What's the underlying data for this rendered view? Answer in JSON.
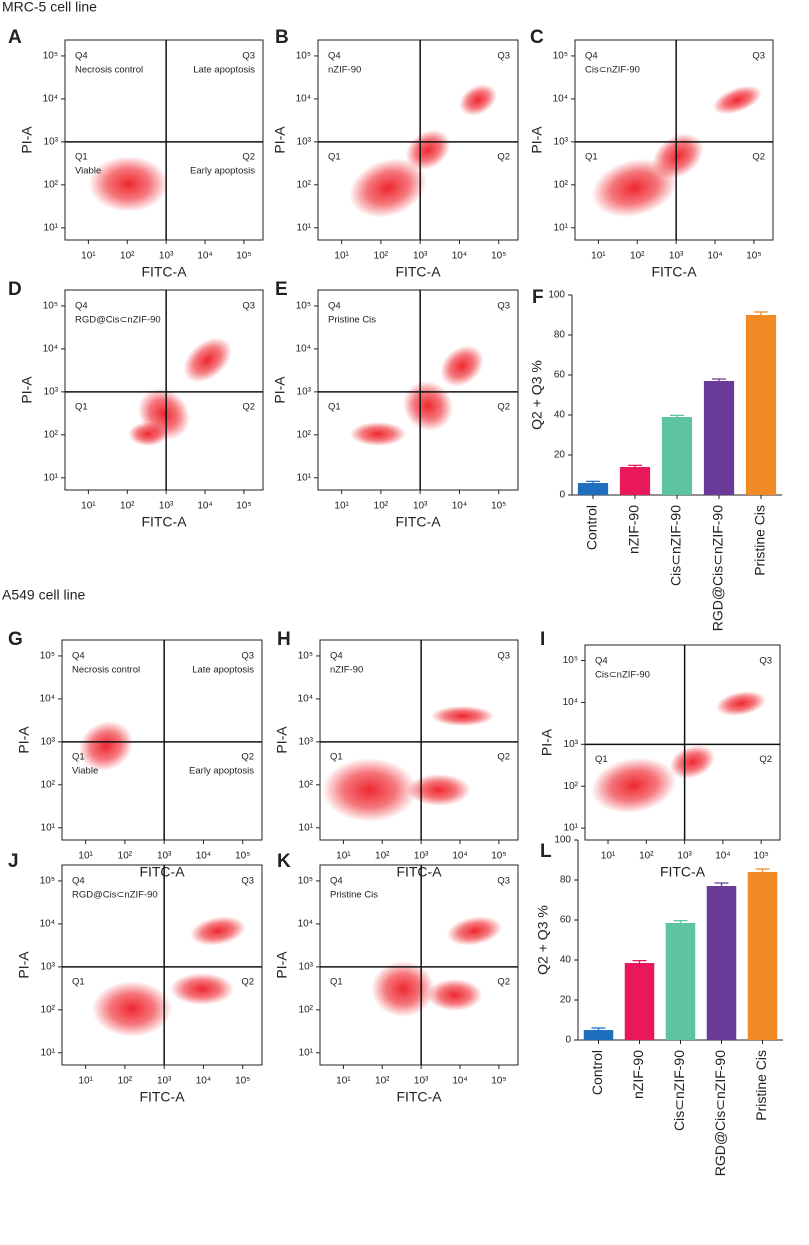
{
  "sections": [
    "MRC-5 cell line",
    "A549 cell line"
  ],
  "flow_axes": {
    "xlim": [
      2.5,
      310000
    ],
    "ylim": [
      5.2,
      235000
    ],
    "xticks": [
      {
        "value": 10,
        "label": "10¹"
      },
      {
        "value": 100,
        "label": "10²"
      },
      {
        "value": 1000,
        "label": "10³"
      },
      {
        "value": 10000,
        "label": "10⁴"
      },
      {
        "value": 100000,
        "label": "10⁵"
      }
    ],
    "yticks": [
      {
        "value": 10,
        "label": "10¹"
      },
      {
        "value": 100,
        "label": "10²"
      },
      {
        "value": 1000,
        "label": "10³"
      },
      {
        "value": 10000,
        "label": "10⁴"
      },
      {
        "value": 100000,
        "label": "10⁵"
      }
    ],
    "gate": {
      "x": 1000,
      "y": 1000
    },
    "log": true,
    "color": "#ee1c25"
  },
  "chart_data": [
    {
      "type": "scatter",
      "panel": "A",
      "xlabel": "FITC-A",
      "ylabel": "PI-A",
      "quadrants": [
        "Q4",
        "Q3",
        "Q1",
        "Q2"
      ],
      "quadrant_notes": [
        "Necrosis control",
        "Late apoptosis",
        "Viable",
        "Early apoptosis"
      ]
    },
    {
      "type": "scatter",
      "panel": "B",
      "xlabel": "FITC-A",
      "ylabel": "PI-A",
      "quadrants": [
        "Q4",
        "Q3",
        "Q1",
        "Q2"
      ],
      "annotation": "nZIF-90"
    },
    {
      "type": "scatter",
      "panel": "C",
      "xlabel": "FITC-A",
      "ylabel": "PI-A",
      "quadrants": [
        "Q4",
        "Q3",
        "Q1",
        "Q2"
      ],
      "annotation": "Cis⊂nZIF-90"
    },
    {
      "type": "scatter",
      "panel": "D",
      "xlabel": "FITC-A",
      "ylabel": "PI-A",
      "quadrants": [
        "Q4",
        "Q3",
        "Q1",
        "Q2"
      ],
      "annotation": "RGD@Cis⊂nZIF-90"
    },
    {
      "type": "scatter",
      "panel": "E",
      "xlabel": "FITC-A",
      "ylabel": "PI-A",
      "quadrants": [
        "Q4",
        "Q3",
        "Q1",
        "Q2"
      ],
      "annotation": "Pristine Cis"
    },
    {
      "type": "bar",
      "panel": "F",
      "ylabel": "Q2 + Q3 %",
      "categories": [
        "Control",
        "nZIF-90",
        "Cis⊂nZIF-90",
        "RGD@Cis⊂nZIF-90",
        "Pristine Cis"
      ],
      "values": [
        6,
        14,
        39,
        57,
        90
      ],
      "errors": [
        0.8,
        0.8,
        0.8,
        1,
        1.5
      ],
      "colors": [
        "#1f6fbf",
        "#e8185a",
        "#5ec4a0",
        "#6a3a98",
        "#f08a24"
      ],
      "ylim": [
        0,
        100
      ],
      "yticks": [
        0,
        20,
        40,
        60,
        80,
        100
      ]
    },
    {
      "type": "scatter",
      "panel": "G",
      "xlabel": "FITC-A",
      "ylabel": "PI-A",
      "quadrants": [
        "Q4",
        "Q3",
        "Q1",
        "Q2"
      ],
      "quadrant_notes": [
        "Necrosis control",
        "Late apoptosis",
        "Viable",
        "Early apoptosis"
      ]
    },
    {
      "type": "scatter",
      "panel": "H",
      "xlabel": "FITC-A",
      "ylabel": "PI-A",
      "quadrants": [
        "Q4",
        "Q3",
        "Q1",
        "Q2"
      ],
      "annotation": "nZIF-90"
    },
    {
      "type": "scatter",
      "panel": "I",
      "xlabel": "FITC-A",
      "ylabel": "PI-A",
      "quadrants": [
        "Q4",
        "Q3",
        "Q1",
        "Q2"
      ],
      "annotation": "Cis⊂nZIF-90"
    },
    {
      "type": "scatter",
      "panel": "J",
      "xlabel": "FITC-A",
      "ylabel": "PI-A",
      "quadrants": [
        "Q4",
        "Q3",
        "Q1",
        "Q2"
      ],
      "annotation": "RGD@Cis⊂nZIF-90"
    },
    {
      "type": "scatter",
      "panel": "K",
      "xlabel": "FITC-A",
      "ylabel": "PI-A",
      "quadrants": [
        "Q4",
        "Q3",
        "Q1",
        "Q2"
      ],
      "annotation": "Pristine Cis"
    },
    {
      "type": "bar",
      "panel": "L",
      "ylabel": "Q2 + Q3 %",
      "categories": [
        "Control",
        "nZIF-90",
        "Cis⊂nZIF-90",
        "RGD@Cis⊂nZIF-90",
        "Pristine Cis"
      ],
      "values": [
        5,
        38.5,
        58.5,
        77,
        84
      ],
      "errors": [
        1,
        1.2,
        1.2,
        1.5,
        1.5
      ],
      "colors": [
        "#1f6fbf",
        "#e8185a",
        "#5ec4a0",
        "#6a3a98",
        "#f08a24"
      ],
      "ylim": [
        0,
        100
      ],
      "yticks": [
        0,
        20,
        40,
        60,
        80,
        100
      ]
    }
  ]
}
